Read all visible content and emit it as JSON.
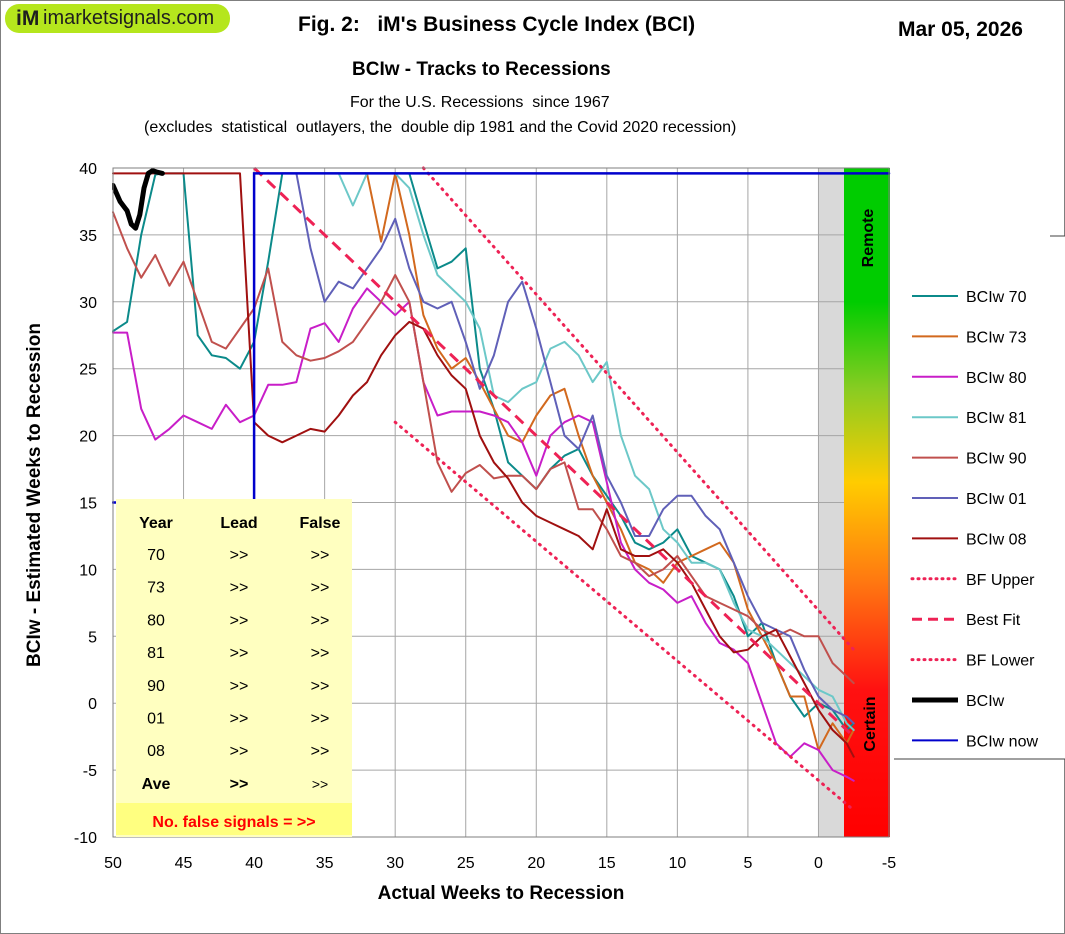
{
  "header": {
    "logo_mark": "iM",
    "logo_text": "imarketsignals.com",
    "figure_title": "Fig. 2:   iM's Business Cycle Index (BCI)",
    "date": "Mar 05, 2026",
    "subtitle": "BCIw - Tracks to Recessions",
    "note_line1": "For the U.S. Recessions  since 1967",
    "note_line2": "(excludes  statistical  outlayers, the  double dip 1981 and the Covid 2020 recession)"
  },
  "colors": {
    "bciw70": "#0b8a8a",
    "bciw73": "#d2691e",
    "bciw80": "#c81ec8",
    "bciw81": "#6cc8c8",
    "bciw90": "#c0504d",
    "bciw01": "#6060b8",
    "bciw08": "#a01010",
    "bf": "#ee2255",
    "bciw": "#000000",
    "now": "#0000cc",
    "table_bg": "#ffffc0",
    "table_red": "#ff0000"
  },
  "scale": {
    "remote_label": "Remote",
    "certain_label": "Certain"
  },
  "table": {
    "headers": [
      "Year",
      "Lead",
      "False"
    ],
    "rows": [
      [
        "70",
        ">>",
        ">>"
      ],
      [
        "73",
        ">>",
        ">>"
      ],
      [
        "80",
        ">>",
        ">>"
      ],
      [
        "81",
        ">>",
        ">>"
      ],
      [
        "90",
        ">>",
        ">>"
      ],
      [
        "01",
        ">>",
        ">>"
      ],
      [
        "08",
        ">>",
        ">>"
      ],
      [
        "Ave",
        ">>",
        ">>"
      ]
    ],
    "footer": "No. false signals = >>"
  },
  "chart_data": {
    "type": "line",
    "title": "BCIw - Tracks to Recessions",
    "xlabel": "Actual  Weeks  to  Recession",
    "ylabel": "BCIw - Estimated  Weeks  to  Recession",
    "xlim": [
      50,
      -5
    ],
    "ylim": [
      -10,
      40
    ],
    "x_ticks": [
      50,
      45,
      40,
      35,
      30,
      25,
      20,
      15,
      10,
      5,
      0,
      -5
    ],
    "y_ticks": [
      40,
      35,
      30,
      25,
      20,
      15,
      10,
      5,
      0,
      -5,
      -10
    ],
    "grid": true,
    "legend_position": "right",
    "series": [
      {
        "name": "BCIw 70",
        "color_key": "bciw70",
        "style": "solid",
        "x": [
          50,
          49,
          48,
          47,
          46.5,
          46,
          45,
          44,
          43,
          42,
          41,
          40,
          39,
          38,
          37,
          36,
          35,
          34,
          33,
          32,
          31,
          30,
          29,
          28,
          27,
          26,
          25,
          24,
          23,
          22,
          21,
          20,
          19,
          18,
          17,
          16,
          15,
          14,
          13,
          12,
          11,
          10,
          9,
          8,
          7,
          6,
          5,
          4,
          3,
          2,
          1,
          0,
          -1,
          -2,
          -2.5
        ],
        "y": [
          27.8,
          28.5,
          35,
          39.5,
          39.6,
          39.6,
          39.6,
          27.5,
          26,
          25.8,
          25,
          27,
          33,
          39.6,
          39.6,
          39.6,
          39.6,
          39.6,
          39.6,
          39.6,
          39.6,
          39.6,
          39.6,
          36,
          32.5,
          33,
          34,
          25,
          22,
          18,
          17,
          16,
          17.5,
          18.5,
          19,
          17,
          15.5,
          14,
          12,
          11.5,
          12,
          13,
          11,
          10.5,
          10,
          8,
          5,
          6,
          3,
          0.5,
          -1,
          0,
          -0.5,
          -2,
          -1.5
        ]
      },
      {
        "name": "BCIw 73",
        "color_key": "bciw73",
        "style": "solid",
        "x": [
          33,
          32,
          31,
          30,
          29,
          28,
          27,
          26,
          25,
          24,
          23,
          22,
          21,
          20,
          19,
          18,
          17,
          16,
          15,
          14,
          13,
          12,
          11,
          10,
          9,
          8,
          7,
          6,
          5,
          4,
          3,
          2,
          1,
          0,
          -1,
          -2,
          -2.5
        ],
        "y": [
          39.6,
          39.6,
          34.5,
          39.6,
          35,
          29,
          26.5,
          25,
          25.8,
          24,
          22,
          20,
          19.5,
          21.5,
          23,
          23.5,
          20,
          17,
          15,
          13,
          10.5,
          10,
          9,
          10.5,
          11,
          11.5,
          12,
          10.5,
          7,
          5,
          3,
          0.5,
          0.5,
          -3.5,
          -1.5,
          -3,
          -2
        ]
      },
      {
        "name": "BCIw 80",
        "color_key": "bciw80",
        "style": "solid",
        "x": [
          50,
          49,
          48,
          47,
          46,
          45,
          44,
          43,
          42,
          41,
          40,
          39,
          38,
          37,
          36,
          35,
          34,
          33,
          32,
          31,
          30,
          29,
          28,
          27,
          26,
          25,
          24,
          23,
          22,
          21,
          20,
          19,
          18,
          17,
          16,
          15,
          14,
          13,
          12,
          11,
          10,
          9,
          8,
          7,
          6,
          5,
          4,
          3,
          2,
          1,
          0,
          -1,
          -2,
          -2.5
        ],
        "y": [
          27.7,
          27.7,
          22,
          19.7,
          20.5,
          21.5,
          21,
          20.5,
          22.3,
          21,
          21.5,
          23.8,
          23.8,
          24,
          28,
          28.4,
          27,
          29.5,
          31,
          30,
          29,
          30,
          24,
          21.5,
          21.8,
          21.8,
          21.8,
          21.5,
          21,
          19.5,
          17,
          20,
          21,
          21.5,
          21,
          16.5,
          12,
          10,
          9,
          8.5,
          7.5,
          8,
          6,
          4.5,
          4,
          3,
          0,
          -3,
          -4,
          -3,
          -3.5,
          -5,
          -5.5,
          -5.8
        ]
      },
      {
        "name": "BCIw 81",
        "color_key": "bciw81",
        "style": "solid",
        "x": [
          36,
          35,
          34,
          33,
          32,
          31,
          30,
          29,
          28,
          27,
          26,
          25,
          24,
          23,
          22,
          21,
          20,
          19,
          18,
          17,
          16,
          15,
          14,
          13,
          12,
          11,
          10,
          9,
          8,
          7,
          6,
          5,
          4,
          3,
          2,
          1,
          0,
          -1,
          -2,
          -2.5
        ],
        "y": [
          39.6,
          39.6,
          39.6,
          37.2,
          39.6,
          39.6,
          39.6,
          38.5,
          35,
          32,
          31,
          30,
          28,
          23,
          22.5,
          23.5,
          24,
          26.5,
          27,
          26,
          24,
          25.5,
          20,
          17,
          16,
          13,
          12,
          10.5,
          10.5,
          10,
          7.5,
          5.5,
          5,
          4,
          3,
          2,
          1,
          0.5,
          -1.5,
          -2
        ]
      },
      {
        "name": "BCIw 90",
        "color_key": "bciw90",
        "style": "solid",
        "x": [
          50,
          49,
          48,
          47,
          46,
          45,
          44,
          43,
          42,
          41,
          40,
          39,
          38,
          37,
          36,
          35,
          34,
          33,
          32,
          31,
          30,
          29,
          28,
          27,
          26,
          25,
          24,
          23,
          22,
          21,
          20,
          19,
          18,
          17,
          16,
          15,
          14,
          13,
          12,
          11,
          10,
          9,
          8,
          7,
          6,
          5,
          4,
          3,
          2,
          1,
          0,
          -1,
          -2,
          -2.5
        ],
        "y": [
          36.7,
          34,
          31.8,
          33.5,
          31.2,
          33,
          30,
          27,
          26.5,
          28,
          29.5,
          32.5,
          27,
          26,
          25.6,
          25.8,
          26.3,
          27,
          28.5,
          30,
          32,
          30,
          24,
          18,
          15.8,
          17.2,
          17.8,
          16.8,
          17,
          17,
          16,
          17.5,
          18,
          14.5,
          14.5,
          13,
          11,
          10.5,
          9.5,
          10,
          11,
          9.5,
          8,
          7.5,
          7,
          6.5,
          5.5,
          5,
          5.5,
          5,
          5,
          3,
          2,
          1.5
        ]
      },
      {
        "name": "BCIw 01",
        "color_key": "bciw01",
        "style": "solid",
        "x": [
          37,
          36,
          35,
          34,
          33,
          32,
          31,
          30,
          29,
          28,
          27,
          26,
          25,
          24,
          23,
          22,
          21,
          20,
          19,
          18,
          17,
          16,
          15,
          14,
          13,
          12,
          11,
          10,
          9,
          8,
          7,
          6,
          5,
          4,
          3,
          2,
          1,
          0,
          -1,
          -2,
          -2.5
        ],
        "y": [
          39.6,
          34,
          30,
          31.5,
          31,
          32.5,
          34,
          36.2,
          32.5,
          30,
          29.5,
          30,
          27,
          23.5,
          26,
          30,
          31.5,
          28,
          24,
          20,
          19,
          21.5,
          17,
          15,
          12.5,
          12.5,
          14.5,
          15.5,
          15.5,
          14,
          13,
          10.5,
          8,
          6,
          5.5,
          5,
          2.5,
          0.5,
          -0.5,
          -1,
          -1.5
        ]
      },
      {
        "name": "BCIw 08",
        "color_key": "bciw08",
        "style": "solid",
        "x": [
          50,
          49,
          48,
          47,
          46,
          45,
          44,
          43,
          42,
          41,
          40,
          39,
          38,
          37,
          36,
          35,
          34,
          33,
          32,
          31,
          30,
          29,
          28,
          27,
          26,
          25,
          24,
          23,
          22,
          21,
          20,
          19,
          18,
          17,
          16,
          15,
          14,
          13,
          12,
          11,
          10,
          9,
          8,
          7,
          6,
          5,
          4,
          3,
          2,
          1,
          0,
          -1,
          -2,
          -2.5
        ],
        "y": [
          39.6,
          39.6,
          39.6,
          39.6,
          39.6,
          39.6,
          39.6,
          39.6,
          39.6,
          39.6,
          21,
          20,
          19.5,
          20,
          20.5,
          20.3,
          21.5,
          23,
          24,
          26,
          27.5,
          28.5,
          28,
          26,
          24.5,
          23.5,
          20,
          18,
          16.8,
          15,
          14,
          13.5,
          13,
          12.5,
          11.5,
          14.5,
          11.5,
          11,
          11,
          11.5,
          10.5,
          9,
          7,
          5,
          3.8,
          4,
          5,
          5.5,
          3.5,
          1.5,
          -0.5,
          -2,
          -3,
          -4
        ]
      },
      {
        "name": "BF Upper",
        "color_key": "bf",
        "style": "dotted",
        "x": [
          28,
          -2.5
        ],
        "y": [
          40,
          4
        ]
      },
      {
        "name": "Best Fit",
        "color_key": "bf",
        "style": "dashed",
        "x": [
          40,
          -2.5
        ],
        "y": [
          40,
          -2.5
        ]
      },
      {
        "name": "BF Lower",
        "color_key": "bf",
        "style": "dotted",
        "x": [
          30,
          -2.5
        ],
        "y": [
          21,
          -8
        ]
      },
      {
        "name": "BCIw",
        "color_key": "bciw",
        "style": "thick",
        "x": [
          50,
          49.5,
          49,
          48.7,
          48.4,
          48.1,
          47.8,
          47.5,
          47.2,
          46.9,
          46.5
        ],
        "y": [
          38.7,
          37.5,
          36.8,
          35.8,
          35.5,
          36.5,
          38.5,
          39.6,
          39.8,
          39.7,
          39.6
        ]
      },
      {
        "name": "BCIw now",
        "color_key": "now",
        "style": "now",
        "x": [
          50,
          40,
          40,
          -5
        ],
        "y": [
          15,
          15,
          39.6,
          39.6
        ]
      }
    ]
  }
}
